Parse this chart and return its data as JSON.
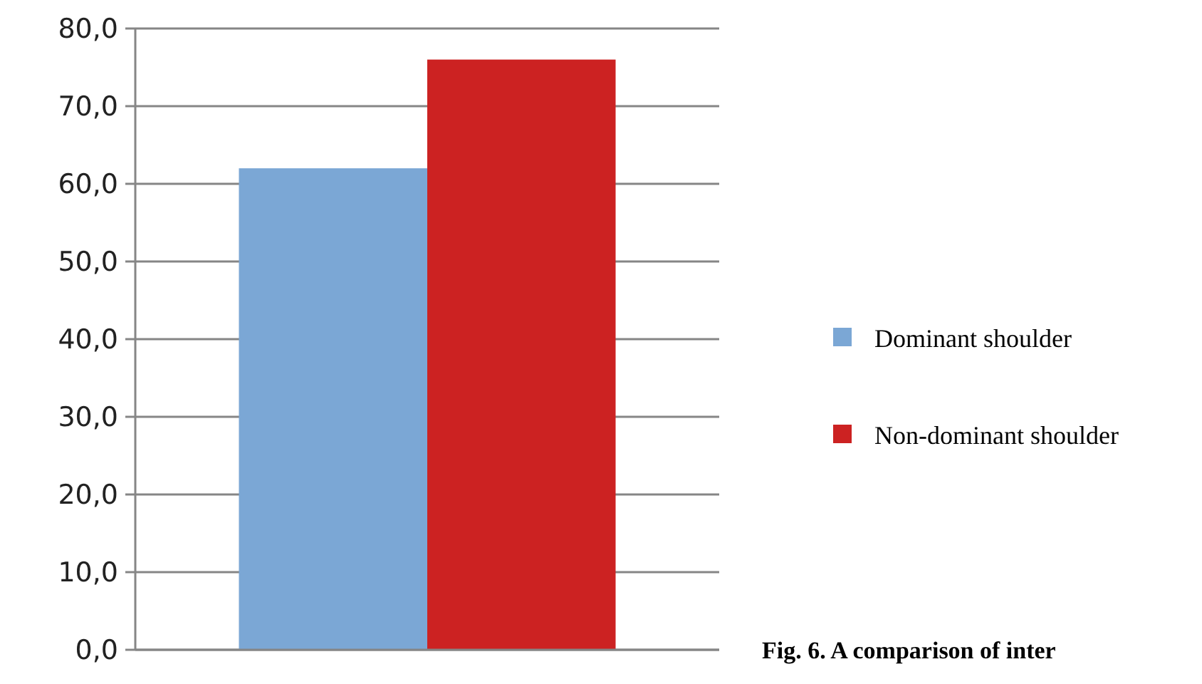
{
  "chart_data": {
    "type": "bar",
    "categories": [
      null
    ],
    "series": [
      {
        "name": "Dominant shoulder",
        "color": "#7ba7d5",
        "values": [
          62
        ]
      },
      {
        "name": "Non-dominant shoulder",
        "color": "#cc2222",
        "values": [
          76
        ]
      }
    ],
    "ylim": [
      0,
      80
    ],
    "yticks": [
      {
        "value": 0,
        "label": "0,0"
      },
      {
        "value": 10,
        "label": "10,0"
      },
      {
        "value": 20,
        "label": "20,0"
      },
      {
        "value": 30,
        "label": "30,0"
      },
      {
        "value": 40,
        "label": "40,0"
      },
      {
        "value": 50,
        "label": "50,0"
      },
      {
        "value": 60,
        "label": "60,0"
      },
      {
        "value": 70,
        "label": "70,0"
      },
      {
        "value": 80,
        "label": "80,0"
      }
    ],
    "grid": "y",
    "legend": "right",
    "annotations": [
      "Fig. 6. A comparison of inter"
    ]
  }
}
